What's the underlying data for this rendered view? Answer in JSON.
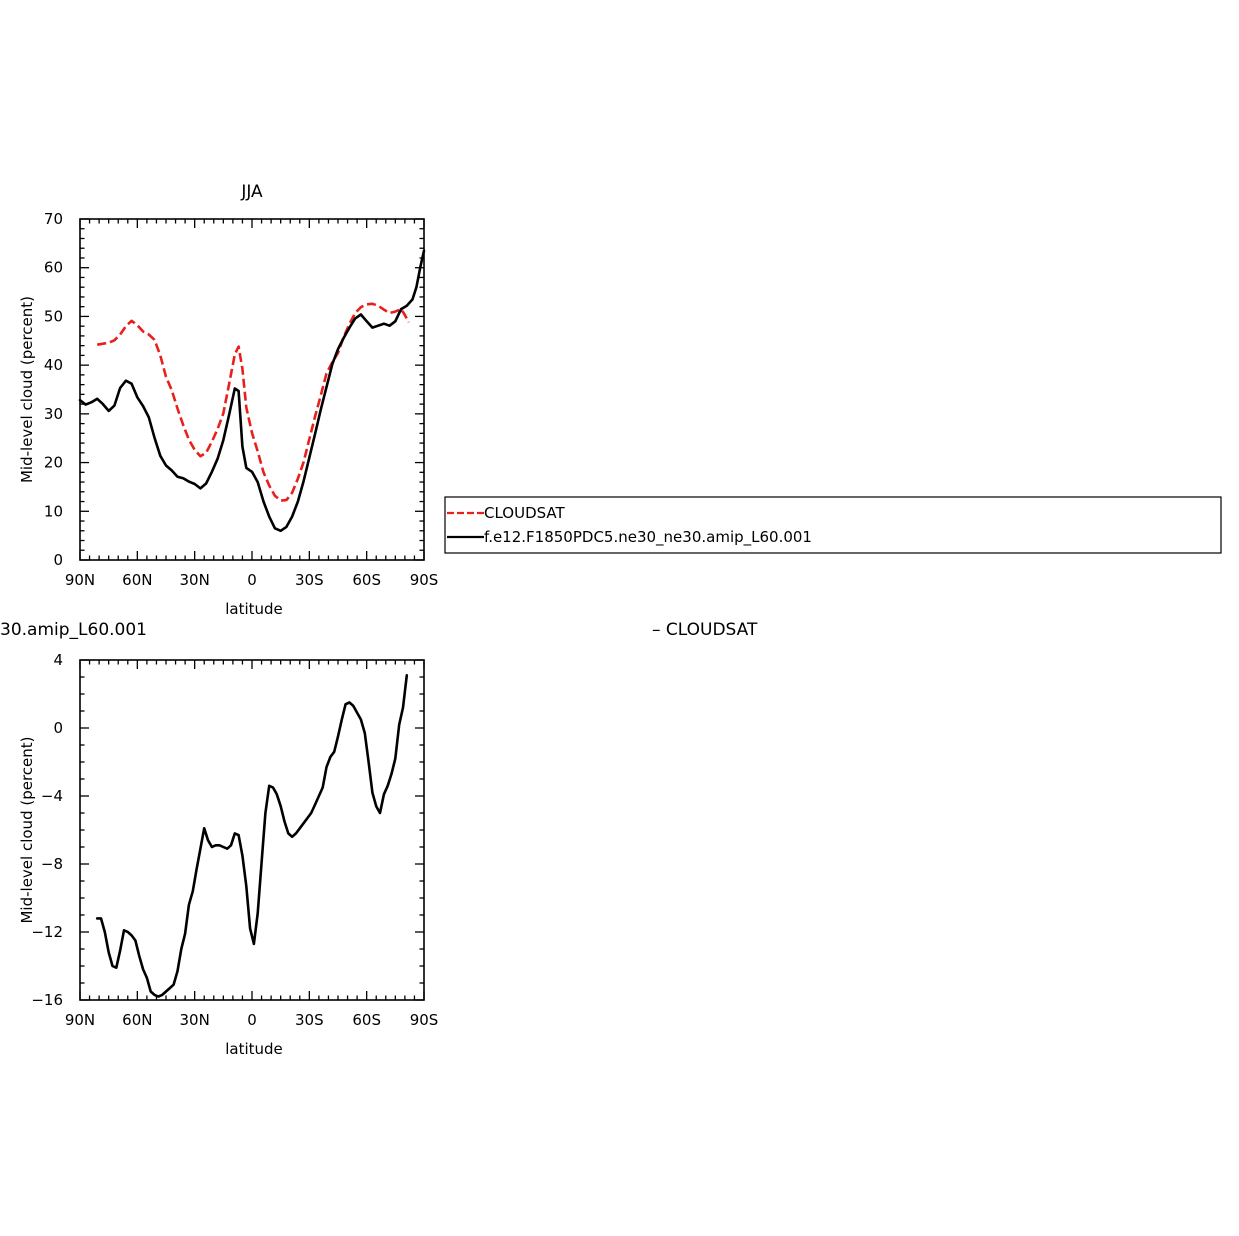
{
  "figure": {
    "top_title": "JJA",
    "bottom_title_left": "30.amip_L60.001",
    "bottom_title_right": "– CLOUDSAT"
  },
  "legend": {
    "placement": "right-of-top-panel",
    "entries": [
      {
        "label": "CLOUDSAT",
        "color": "#e8201c",
        "style": "dashed"
      },
      {
        "label": "f.e12.F1850PDC5.ne30_ne30.amip_L60.001",
        "color": "#000000",
        "style": "solid"
      }
    ]
  },
  "chart_data": [
    {
      "type": "line",
      "title": "JJA",
      "xlabel": "latitude",
      "ylabel": "Mid-level cloud (percent)",
      "xlim": [
        -90,
        90
      ],
      "ylim": [
        0,
        70
      ],
      "x_ticks": [
        {
          "value": -90,
          "label": "90N"
        },
        {
          "value": -60,
          "label": "60N"
        },
        {
          "value": -30,
          "label": "30N"
        },
        {
          "value": 0,
          "label": "0"
        },
        {
          "value": 30,
          "label": "30S"
        },
        {
          "value": 60,
          "label": "60S"
        },
        {
          "value": 90,
          "label": "90S"
        }
      ],
      "y_ticks": [
        0,
        10,
        20,
        30,
        40,
        50,
        60,
        70
      ],
      "grid": false,
      "series": [
        {
          "name": "CLOUDSAT",
          "color": "#e8201c",
          "style": "dashed",
          "x": [
            -81,
            -75,
            -72,
            -69,
            -66,
            -63,
            -60,
            -57,
            -54,
            -51,
            -48,
            -45,
            -42,
            -39,
            -36,
            -33,
            -30,
            -27,
            -24,
            -21,
            -18,
            -15,
            -12,
            -9,
            -7,
            -5,
            -3,
            0,
            3,
            6,
            9,
            12,
            15,
            18,
            21,
            24,
            27,
            30,
            33,
            36,
            39,
            42,
            45,
            48,
            51,
            54,
            57,
            60,
            63,
            66,
            69,
            72,
            75,
            78,
            80,
            82
          ],
          "values": [
            44.2,
            44.6,
            45.1,
            46.3,
            48.0,
            49.1,
            48.2,
            46.9,
            46.3,
            45.2,
            42.0,
            37.6,
            34.9,
            31.1,
            27.7,
            24.7,
            22.6,
            21.3,
            22.0,
            24.3,
            26.9,
            30.1,
            36.1,
            42.2,
            43.8,
            39.3,
            31.3,
            26.1,
            22.3,
            18.0,
            15.3,
            13.2,
            12.2,
            12.3,
            13.8,
            16.7,
            20.1,
            24.8,
            29.5,
            33.8,
            38.3,
            40.6,
            42.5,
            45.8,
            48.5,
            50.7,
            51.9,
            52.5,
            52.6,
            52.2,
            51.4,
            50.7,
            51.0,
            51.5,
            50.3,
            48.8
          ]
        },
        {
          "name": "f.e12.F1850PDC5.ne30_ne30.amip_L60.001",
          "color": "#000000",
          "style": "solid",
          "x": [
            -90,
            -87,
            -84,
            -81,
            -78,
            -75,
            -72,
            -69,
            -66,
            -63,
            -60,
            -57,
            -54,
            -51,
            -48,
            -45,
            -42,
            -39,
            -36,
            -33,
            -30,
            -27,
            -24,
            -21,
            -18,
            -15,
            -12,
            -9,
            -7,
            -5,
            -3,
            0,
            3,
            6,
            9,
            12,
            15,
            18,
            21,
            24,
            27,
            30,
            33,
            36,
            39,
            42,
            45,
            48,
            51,
            54,
            57,
            60,
            63,
            66,
            69,
            72,
            75,
            78,
            81,
            84,
            86,
            88,
            90
          ],
          "values": [
            32.8,
            31.9,
            32.4,
            33.1,
            32.0,
            30.6,
            31.7,
            35.3,
            36.8,
            36.2,
            33.4,
            31.6,
            29.3,
            25.1,
            21.4,
            19.4,
            18.4,
            17.1,
            16.8,
            16.1,
            15.6,
            14.7,
            15.7,
            18.1,
            20.8,
            24.6,
            29.8,
            35.2,
            34.7,
            23.3,
            18.9,
            18.1,
            16.0,
            12.0,
            8.9,
            6.5,
            6.0,
            6.8,
            8.9,
            12.0,
            16.2,
            21.0,
            25.9,
            30.9,
            35.5,
            40.2,
            43.3,
            45.6,
            47.7,
            49.6,
            50.4,
            49.0,
            47.7,
            48.1,
            48.5,
            48.1,
            49.0,
            51.5,
            52.2,
            53.5,
            56.0,
            60.0,
            63.5
          ]
        }
      ]
    },
    {
      "type": "line",
      "title": "30.amip_L60.001 – CLOUDSAT",
      "xlabel": "latitude",
      "ylabel": "Mid-level cloud (percent)",
      "xlim": [
        -90,
        90
      ],
      "ylim": [
        -16,
        4
      ],
      "x_ticks": [
        {
          "value": -90,
          "label": "90N"
        },
        {
          "value": -60,
          "label": "60N"
        },
        {
          "value": -30,
          "label": "30N"
        },
        {
          "value": 0,
          "label": "0"
        },
        {
          "value": 30,
          "label": "30S"
        },
        {
          "value": 60,
          "label": "60S"
        },
        {
          "value": 90,
          "label": "90S"
        }
      ],
      "y_ticks": [
        -16,
        -12,
        -8,
        -4,
        0,
        4
      ],
      "grid": false,
      "series": [
        {
          "name": "",
          "color": "#000000",
          "style": "solid",
          "x": [
            -81,
            -79,
            -77,
            -75,
            -73,
            -71,
            -69,
            -67,
            -65,
            -63,
            -61,
            -59,
            -57,
            -55,
            -53,
            -51,
            -49,
            -47,
            -45,
            -43,
            -41,
            -39,
            -37,
            -35,
            -33,
            -31,
            -29,
            -27,
            -25,
            -23,
            -21,
            -19,
            -17,
            -15,
            -13,
            -11,
            -9,
            -7,
            -5,
            -3,
            -1,
            1,
            3,
            5,
            7,
            9,
            11,
            13,
            15,
            17,
            19,
            21,
            23,
            25,
            27,
            29,
            31,
            33,
            35,
            37,
            39,
            41,
            43,
            45,
            47,
            49,
            51,
            53,
            55,
            57,
            59,
            61,
            63,
            65,
            67,
            69,
            71,
            73,
            75,
            77,
            79,
            81
          ],
          "values": [
            -11.2,
            -11.2,
            -12.0,
            -13.2,
            -14.0,
            -14.1,
            -13.1,
            -11.9,
            -12.0,
            -12.2,
            -12.5,
            -13.4,
            -14.2,
            -14.7,
            -15.5,
            -15.7,
            -15.8,
            -15.7,
            -15.5,
            -15.3,
            -15.1,
            -14.3,
            -13.0,
            -12.1,
            -10.4,
            -9.6,
            -8.3,
            -7.1,
            -5.9,
            -6.6,
            -7.0,
            -6.9,
            -6.9,
            -7.0,
            -7.1,
            -6.9,
            -6.2,
            -6.3,
            -7.5,
            -9.3,
            -11.8,
            -12.7,
            -10.9,
            -7.9,
            -5.0,
            -3.4,
            -3.5,
            -3.9,
            -4.6,
            -5.5,
            -6.2,
            -6.4,
            -6.2,
            -5.9,
            -5.6,
            -5.3,
            -5.0,
            -4.5,
            -4.0,
            -3.5,
            -2.3,
            -1.7,
            -1.4,
            -0.5,
            0.5,
            1.4,
            1.5,
            1.3,
            0.9,
            0.5,
            -0.3,
            -2.0,
            -3.8,
            -4.6,
            -5.0,
            -3.9,
            -3.4,
            -2.7,
            -1.8,
            0.2,
            1.2,
            3.1
          ]
        }
      ]
    }
  ]
}
